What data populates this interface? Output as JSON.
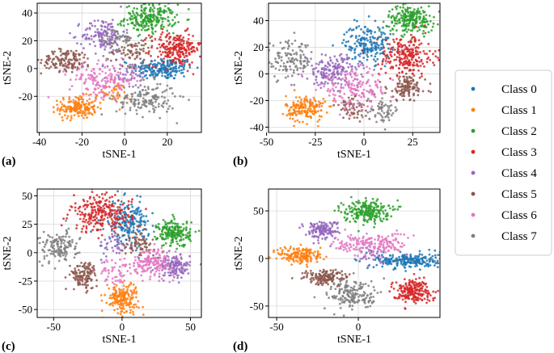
{
  "figure": {
    "legend": {
      "entries": [
        "Class 0",
        "Class 1",
        "Class 2",
        "Class 3",
        "Class 4",
        "Class 5",
        "Class 6",
        "Class 7"
      ],
      "placement": "right"
    },
    "colors": [
      "#1f77b4",
      "#ff7f0e",
      "#2ca02c",
      "#d62728",
      "#9467bd",
      "#8c564b",
      "#e377c2",
      "#7f7f7f"
    ]
  },
  "chart_data": [
    {
      "type": "scatter",
      "panel_label": "(a)",
      "xlabel": "tSNE-1",
      "ylabel": "tSNE-2",
      "xlim": [
        -41,
        36
      ],
      "ylim": [
        -46,
        47
      ],
      "xticks": [
        -40,
        -20,
        0,
        20
      ],
      "yticks": [
        -20,
        0,
        20,
        40
      ],
      "clusters": [
        {
          "class": 0,
          "cx": 18,
          "cy": 0,
          "sx": 7,
          "sy": 4,
          "n": 200
        },
        {
          "class": 1,
          "cx": -22,
          "cy": -28,
          "sx": 4.5,
          "sy": 4,
          "n": 170
        },
        {
          "class": 1,
          "cx": -6,
          "cy": -18,
          "sx": 4,
          "sy": 4,
          "n": 40
        },
        {
          "class": 2,
          "cx": 12,
          "cy": 36,
          "sx": 6,
          "sy": 5,
          "n": 230
        },
        {
          "class": 3,
          "cx": 24,
          "cy": 14,
          "sx": 6,
          "sy": 6,
          "n": 220
        },
        {
          "class": 4,
          "cx": -10,
          "cy": 24,
          "sx": 5,
          "sy": 6,
          "n": 140
        },
        {
          "class": 4,
          "cx": 2,
          "cy": -4,
          "sx": 5,
          "sy": 5,
          "n": 40
        },
        {
          "class": 5,
          "cx": -27,
          "cy": 6,
          "sx": 6,
          "sy": 4,
          "n": 140
        },
        {
          "class": 5,
          "cx": 3,
          "cy": 12,
          "sx": 5,
          "sy": 5,
          "n": 70
        },
        {
          "class": 6,
          "cx": -10,
          "cy": -8,
          "sx": 8,
          "sy": 6,
          "n": 160
        },
        {
          "class": 7,
          "cx": 10,
          "cy": -22,
          "sx": 7,
          "sy": 6,
          "n": 150
        },
        {
          "class": 7,
          "cx": -2,
          "cy": 20,
          "sx": 5,
          "sy": 5,
          "n": 50
        }
      ]
    },
    {
      "type": "scatter",
      "panel_label": "(b)",
      "xlabel": "tSNE-1",
      "ylabel": "tSNE-2",
      "xlim": [
        -49,
        39
      ],
      "ylim": [
        -44,
        53
      ],
      "xticks": [
        -50,
        -25,
        0,
        25
      ],
      "yticks": [
        -40,
        -20,
        0,
        20,
        40
      ],
      "clusters": [
        {
          "class": 0,
          "cx": 2,
          "cy": 23,
          "sx": 6,
          "sy": 7,
          "n": 190
        },
        {
          "class": 1,
          "cx": -30,
          "cy": -26,
          "sx": 5,
          "sy": 5,
          "n": 170
        },
        {
          "class": 2,
          "cx": 24,
          "cy": 41,
          "sx": 6,
          "sy": 5,
          "n": 220
        },
        {
          "class": 3,
          "cx": 22,
          "cy": 13,
          "sx": 7,
          "sy": 8,
          "n": 230
        },
        {
          "class": 4,
          "cx": -16,
          "cy": 2,
          "sx": 7,
          "sy": 6,
          "n": 180
        },
        {
          "class": 5,
          "cx": 22,
          "cy": -10,
          "sx": 5,
          "sy": 5,
          "n": 120
        },
        {
          "class": 5,
          "cx": -5,
          "cy": -25,
          "sx": 5,
          "sy": 5,
          "n": 60
        },
        {
          "class": 6,
          "cx": -5,
          "cy": -12,
          "sx": 9,
          "sy": 7,
          "n": 160
        },
        {
          "class": 7,
          "cx": -38,
          "cy": 10,
          "sx": 6,
          "sy": 7,
          "n": 120
        },
        {
          "class": 7,
          "cx": 10,
          "cy": -28,
          "sx": 4,
          "sy": 4,
          "n": 60
        }
      ]
    },
    {
      "type": "scatter",
      "panel_label": "(c)",
      "xlabel": "tSNE-1",
      "ylabel": "tSNE-2",
      "xlim": [
        -62,
        58
      ],
      "ylim": [
        -57,
        56
      ],
      "xticks": [
        -50,
        0,
        50
      ],
      "yticks": [
        -50,
        -25,
        0,
        25,
        50
      ],
      "clusters": [
        {
          "class": 0,
          "cx": 4,
          "cy": 27,
          "sx": 8,
          "sy": 9,
          "n": 200
        },
        {
          "class": 1,
          "cx": 0,
          "cy": -40,
          "sx": 6,
          "sy": 7,
          "n": 170
        },
        {
          "class": 2,
          "cx": 38,
          "cy": 17,
          "sx": 6,
          "sy": 6,
          "n": 200
        },
        {
          "class": 3,
          "cx": -15,
          "cy": 34,
          "sx": 11,
          "sy": 8,
          "n": 240
        },
        {
          "class": 4,
          "cx": 38,
          "cy": -12,
          "sx": 6,
          "sy": 5,
          "n": 140
        },
        {
          "class": 4,
          "cx": -5,
          "cy": 5,
          "sx": 6,
          "sy": 6,
          "n": 40
        },
        {
          "class": 5,
          "cx": -28,
          "cy": -20,
          "sx": 5,
          "sy": 6,
          "n": 120
        },
        {
          "class": 5,
          "cx": 12,
          "cy": 8,
          "sx": 6,
          "sy": 5,
          "n": 70
        },
        {
          "class": 6,
          "cx": 22,
          "cy": -8,
          "sx": 8,
          "sy": 6,
          "n": 160
        },
        {
          "class": 6,
          "cx": -5,
          "cy": -18,
          "sx": 6,
          "sy": 6,
          "n": 50
        },
        {
          "class": 7,
          "cx": -46,
          "cy": 5,
          "sx": 7,
          "sy": 7,
          "n": 140
        }
      ]
    },
    {
      "type": "scatter",
      "panel_label": "(d)",
      "xlabel": "tSNE-1",
      "ylabel": "tSNE-2",
      "xlim": [
        -55,
        50
      ],
      "ylim": [
        -62,
        73
      ],
      "xticks": [
        -50,
        0
      ],
      "yticks": [
        -50,
        0,
        50
      ],
      "clusters": [
        {
          "class": 0,
          "cx": 30,
          "cy": -2,
          "sx": 10,
          "sy": 4,
          "n": 230
        },
        {
          "class": 1,
          "cx": -35,
          "cy": 3,
          "sx": 7,
          "sy": 5,
          "n": 160
        },
        {
          "class": 2,
          "cx": 5,
          "cy": 50,
          "sx": 7,
          "sy": 6,
          "n": 220
        },
        {
          "class": 3,
          "cx": 33,
          "cy": -34,
          "sx": 6,
          "sy": 6,
          "n": 200
        },
        {
          "class": 4,
          "cx": -22,
          "cy": 30,
          "sx": 5,
          "sy": 5,
          "n": 140
        },
        {
          "class": 4,
          "cx": 8,
          "cy": 4,
          "sx": 5,
          "sy": 5,
          "n": 30
        },
        {
          "class": 5,
          "cx": -20,
          "cy": -20,
          "sx": 7,
          "sy": 4,
          "n": 140
        },
        {
          "class": 6,
          "cx": 8,
          "cy": 15,
          "sx": 11,
          "sy": 6,
          "n": 180
        },
        {
          "class": 7,
          "cx": -3,
          "cy": -38,
          "sx": 8,
          "sy": 8,
          "n": 170
        }
      ]
    }
  ]
}
